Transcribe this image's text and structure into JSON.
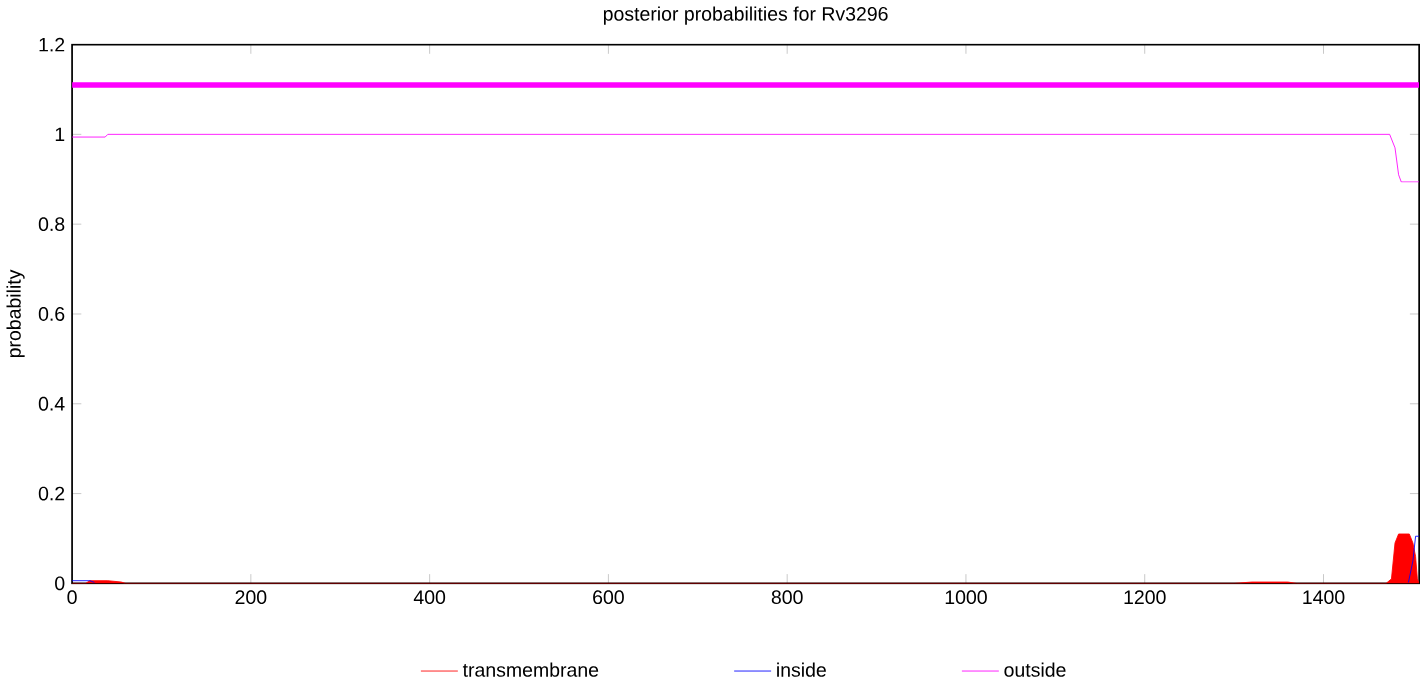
{
  "chart_data": {
    "type": "line",
    "title": "posterior probabilities for Rv3296",
    "ylabel": "probability",
    "xlim": [
      0,
      1507
    ],
    "ylim": [
      0,
      1.2
    ],
    "xticks": [
      0,
      200,
      400,
      600,
      800,
      1000,
      1200,
      1400
    ],
    "yticks": [
      0,
      0.2,
      0.4,
      0.6,
      0.8,
      1,
      1.2
    ],
    "grid": false,
    "legend": "bottom",
    "marker": "none",
    "ref_lines": [
      {
        "axis": "y",
        "value": 1.11,
        "color": "#ff00ff"
      }
    ],
    "series": [
      {
        "name": "transmembrane",
        "type": "area",
        "color": "#ff0000",
        "x": [
          0,
          15,
          20,
          40,
          55,
          60,
          1300,
          1320,
          1360,
          1370,
          1470,
          1476,
          1478,
          1480,
          1484,
          1490,
          1496,
          1500,
          1503,
          1505,
          1507
        ],
        "values": [
          0,
          0,
          0.006,
          0.006,
          0.003,
          0,
          0,
          0.003,
          0.003,
          0,
          0,
          0.01,
          0.05,
          0.09,
          0.11,
          0.11,
          0.11,
          0.09,
          0.06,
          0.01,
          0
        ]
      },
      {
        "name": "inside",
        "color": "#0000ff",
        "x": [
          0,
          20,
          25,
          100,
          1300,
          1495,
          1500,
          1503,
          1507
        ],
        "values": [
          0.006,
          0.006,
          0.002,
          null,
          null,
          0.002,
          0.05,
          0.105,
          0.105
        ]
      },
      {
        "name": "outside",
        "color": "#ff00ff",
        "x": [
          0,
          37,
          40,
          1474,
          1480,
          1484,
          1487,
          1507
        ],
        "values": [
          0.994,
          0.994,
          1.0,
          1.0,
          0.97,
          0.91,
          0.894,
          0.894
        ]
      }
    ]
  }
}
